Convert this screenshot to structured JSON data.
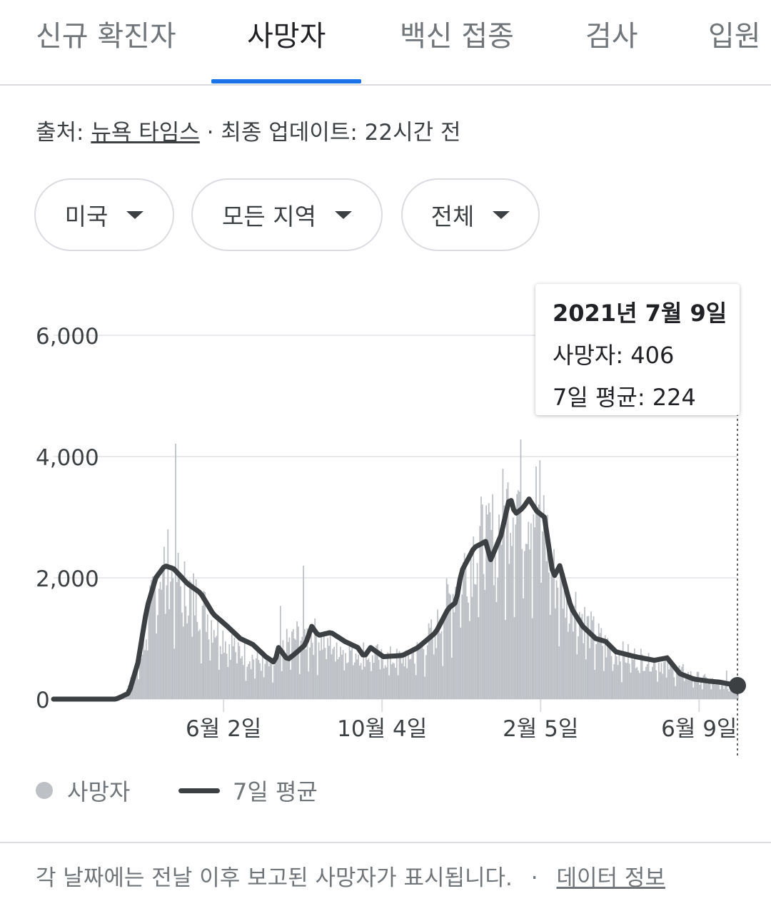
{
  "tabs": [
    {
      "label": "신규 확진자",
      "active": false
    },
    {
      "label": "사망자",
      "active": true
    },
    {
      "label": "백신 접종",
      "active": false
    },
    {
      "label": "검사",
      "active": false
    },
    {
      "label": "입원",
      "active": false
    }
  ],
  "colors": {
    "accent": "#1a73e8",
    "bars": "#bdc1c6",
    "line": "#3c4043"
  },
  "source": {
    "prefix": "출처:",
    "link": "뉴욕 타임스",
    "separator": "·",
    "update": "최종 업데이트: 22시간 전"
  },
  "filters": [
    {
      "label": "미국",
      "icon": "caret-down-icon"
    },
    {
      "label": "모든 지역",
      "icon": "caret-down-icon"
    },
    {
      "label": "전체",
      "icon": "caret-down-icon"
    }
  ],
  "tooltip": {
    "date": "2021년 7월 9일",
    "deaths_label": "사망자: 406",
    "avg_label": "7일 평균: 224"
  },
  "legend": {
    "bars": "사망자",
    "line": "7일 평균"
  },
  "footer": {
    "note": "각 날짜에는 전날 이후 보고된 사망자가 표시됩니다.",
    "separator": "·",
    "link": "데이터 정보"
  },
  "chart_data": {
    "type": "bar",
    "x_range": [
      "2020-01-21",
      "2021-07-09"
    ],
    "ylim": [
      0,
      6000
    ],
    "y_ticks": [
      0,
      2000,
      4000,
      6000
    ],
    "y_tick_labels": [
      "0",
      "2,000",
      "4,000",
      "6,000"
    ],
    "x_tick_labels": [
      "6월 2일",
      "10월 4일",
      "2월 5일",
      "6월 9일"
    ],
    "x_tick_dates": [
      "2020-06-02",
      "2020-10-04",
      "2021-02-05",
      "2021-06-09"
    ],
    "grid": true,
    "legend_position": "bottom-left",
    "series": [
      {
        "name": "사망자",
        "type": "bar",
        "points": [
          [
            "2020-01-21",
            0
          ],
          [
            "2020-03-01",
            0
          ],
          [
            "2020-03-15",
            50
          ],
          [
            "2020-03-25",
            500
          ],
          [
            "2020-04-01",
            1200
          ],
          [
            "2020-04-08",
            2000
          ],
          [
            "2020-04-15",
            2600
          ],
          [
            "2020-04-22",
            2400
          ],
          [
            "2020-05-01",
            2100
          ],
          [
            "2020-05-10",
            1900
          ],
          [
            "2020-05-20",
            1600
          ],
          [
            "2020-06-01",
            1200
          ],
          [
            "2020-06-15",
            900
          ],
          [
            "2020-07-01",
            700
          ],
          [
            "2020-07-10",
            600
          ],
          [
            "2020-07-20",
            1000
          ],
          [
            "2020-07-30",
            1200
          ],
          [
            "2020-08-10",
            1200
          ],
          [
            "2020-08-20",
            1100
          ],
          [
            "2020-09-01",
            1000
          ],
          [
            "2020-09-15",
            900
          ],
          [
            "2020-10-01",
            800
          ],
          [
            "2020-10-15",
            750
          ],
          [
            "2020-11-01",
            900
          ],
          [
            "2020-11-15",
            1300
          ],
          [
            "2020-12-01",
            2200
          ],
          [
            "2020-12-15",
            2900
          ],
          [
            "2021-01-01",
            3100
          ],
          [
            "2021-01-15",
            3900
          ],
          [
            "2021-01-22",
            3800
          ],
          [
            "2021-02-05",
            3600
          ],
          [
            "2021-02-15",
            2300
          ],
          [
            "2021-03-01",
            1900
          ],
          [
            "2021-03-15",
            1300
          ],
          [
            "2021-04-01",
            900
          ],
          [
            "2021-04-15",
            800
          ],
          [
            "2021-05-01",
            750
          ],
          [
            "2021-05-15",
            650
          ],
          [
            "2021-06-01",
            450
          ],
          [
            "2021-06-15",
            350
          ],
          [
            "2021-07-01",
            250
          ],
          [
            "2021-07-09",
            406
          ]
        ]
      },
      {
        "name": "7일 평균",
        "type": "line",
        "points": [
          [
            "2020-01-21",
            0
          ],
          [
            "2020-03-10",
            0
          ],
          [
            "2020-03-20",
            100
          ],
          [
            "2020-03-27",
            600
          ],
          [
            "2020-04-03",
            1500
          ],
          [
            "2020-04-10",
            2000
          ],
          [
            "2020-04-17",
            2200
          ],
          [
            "2020-04-24",
            2150
          ],
          [
            "2020-05-05",
            1900
          ],
          [
            "2020-05-15",
            1750
          ],
          [
            "2020-05-25",
            1400
          ],
          [
            "2020-06-05",
            1200
          ],
          [
            "2020-06-15",
            1000
          ],
          [
            "2020-06-25",
            900
          ],
          [
            "2020-07-05",
            700
          ],
          [
            "2020-07-12",
            600
          ],
          [
            "2020-07-15",
            850
          ],
          [
            "2020-07-22",
            650
          ],
          [
            "2020-07-28",
            750
          ],
          [
            "2020-08-05",
            900
          ],
          [
            "2020-08-10",
            1200
          ],
          [
            "2020-08-15",
            1050
          ],
          [
            "2020-08-25",
            1100
          ],
          [
            "2020-09-05",
            950
          ],
          [
            "2020-09-15",
            850
          ],
          [
            "2020-09-20",
            700
          ],
          [
            "2020-09-25",
            850
          ],
          [
            "2020-10-05",
            700
          ],
          [
            "2020-10-20",
            720
          ],
          [
            "2020-11-01",
            850
          ],
          [
            "2020-11-15",
            1100
          ],
          [
            "2020-11-25",
            1500
          ],
          [
            "2020-12-01",
            1600
          ],
          [
            "2020-12-05",
            2100
          ],
          [
            "2020-12-15",
            2500
          ],
          [
            "2020-12-24",
            2600
          ],
          [
            "2020-12-28",
            2300
          ],
          [
            "2021-01-05",
            2700
          ],
          [
            "2021-01-12",
            3350
          ],
          [
            "2021-01-16",
            3050
          ],
          [
            "2021-01-22",
            3150
          ],
          [
            "2021-01-27",
            3300
          ],
          [
            "2021-02-02",
            3100
          ],
          [
            "2021-02-08",
            3000
          ],
          [
            "2021-02-15",
            2000
          ],
          [
            "2021-02-20",
            2200
          ],
          [
            "2021-03-01",
            1500
          ],
          [
            "2021-03-10",
            1200
          ],
          [
            "2021-03-20",
            1000
          ],
          [
            "2021-03-28",
            950
          ],
          [
            "2021-04-05",
            780
          ],
          [
            "2021-04-20",
            700
          ],
          [
            "2021-05-05",
            640
          ],
          [
            "2021-05-15",
            680
          ],
          [
            "2021-05-25",
            420
          ],
          [
            "2021-06-05",
            330
          ],
          [
            "2021-06-15",
            300
          ],
          [
            "2021-06-25",
            280
          ],
          [
            "2021-07-05",
            240
          ],
          [
            "2021-07-09",
            224
          ]
        ]
      }
    ]
  }
}
